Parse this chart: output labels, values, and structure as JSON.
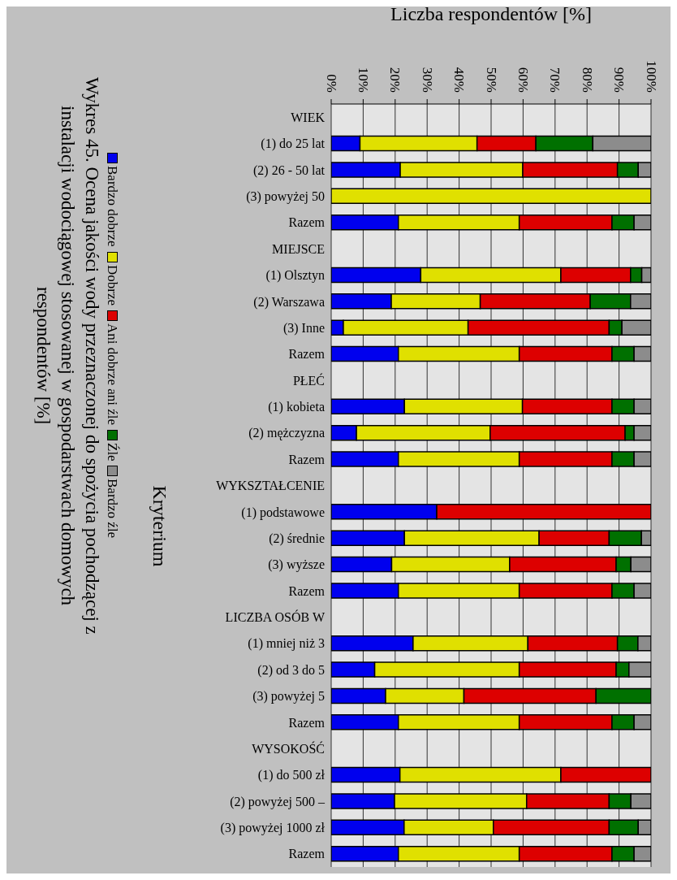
{
  "chart_data": {
    "type": "bar",
    "orientation": "horizontal",
    "stacked": true,
    "title": "Wykres 45. Ocena jakości wody przeznaczonej do spożycia pochodzącej z instalacji  wodociągowej stosowanej w gospodarstwach domowych respondentów [%]",
    "xlabel": "Liczba respondentów [%]",
    "ylabel": "Kryterium",
    "categories": [
      "WIEK",
      "(1) do 25 lat",
      "(2) 26 - 50 lat",
      "(3) powyżej 50",
      "Razem",
      "MIEJSCE",
      "(1) Olsztyn",
      "(2) Warszawa",
      "(3) Inne",
      "Razem",
      "PŁEĆ",
      "(1) kobieta",
      "(2) mężczyzna",
      "Razem",
      "WYKSZTAŁCENIE",
      "(1) podstawowe",
      "(2) średnie",
      "(3) wyższe",
      "Razem",
      "LICZBA OSÓB W",
      "(1) mniej niż 3",
      "(2) od 3 do 5",
      "(3) powyżej 5",
      "Razem",
      "WYSOKOŚĆ",
      "(1) do 500 zł",
      "(2) powyżej 500 –",
      "(3) powyżej 1000 zł",
      "Razem"
    ],
    "series": [
      {
        "name": "Bardzo dobrze",
        "color": "#0000ee",
        "values": [
          null,
          9,
          21.6,
          0,
          21,
          null,
          28,
          18.8,
          3.8,
          21,
          null,
          22.9,
          7.9,
          21,
          null,
          33,
          22.9,
          18.9,
          21,
          null,
          25.6,
          13.6,
          17,
          21,
          null,
          21.5,
          19.8,
          22.8,
          21
        ]
      },
      {
        "name": "Dobrze",
        "color": "#e0e000",
        "values": [
          null,
          36.6,
          38.3,
          100,
          37.8,
          null,
          43.8,
          27.8,
          39,
          37.8,
          null,
          36.9,
          41.8,
          37.8,
          null,
          0,
          42.1,
          36.9,
          37.8,
          null,
          35.9,
          45.2,
          24.5,
          37.8,
          null,
          50.3,
          41.3,
          27.9,
          37.8
        ]
      },
      {
        "name": "Ani dobrze ani źle",
        "color": "#dd0000",
        "values": [
          null,
          18.4,
          29.6,
          0,
          29,
          null,
          21.8,
          34.4,
          44.1,
          29,
          null,
          28,
          42.2,
          29,
          null,
          67,
          21.9,
          33.3,
          29,
          null,
          28,
          30.3,
          41.3,
          29,
          null,
          28.2,
          25.8,
          36.2,
          29
        ]
      },
      {
        "name": "Źle",
        "color": "#007000",
        "values": [
          null,
          17.8,
          6.5,
          0,
          6.9,
          null,
          3.5,
          12.6,
          4,
          6.9,
          null,
          6.9,
          2.8,
          6.9,
          null,
          0,
          10.1,
          4.6,
          6.9,
          null,
          6.4,
          4,
          17.2,
          6.9,
          null,
          0,
          6.8,
          9.1,
          6.9
        ]
      },
      {
        "name": "Bardzo źle",
        "color": "#8c8c8c",
        "values": [
          null,
          18.2,
          4,
          0,
          5.3,
          null,
          2.9,
          6.4,
          9.1,
          5.3,
          null,
          5.3,
          5.3,
          5.3,
          null,
          0,
          3,
          6.3,
          5.3,
          null,
          4.1,
          6.9,
          0,
          5.3,
          null,
          0,
          6.3,
          4,
          5.3
        ]
      }
    ],
    "xlim": [
      0,
      100
    ],
    "xticks": [
      {
        "value": 0,
        "label": "0%"
      },
      {
        "value": 10,
        "label": "10%"
      },
      {
        "value": 20,
        "label": "20%"
      },
      {
        "value": 30,
        "label": "30%"
      },
      {
        "value": 40,
        "label": "40%"
      },
      {
        "value": 50,
        "label": "50%"
      },
      {
        "value": 60,
        "label": "60%"
      },
      {
        "value": 70,
        "label": "70%"
      },
      {
        "value": 80,
        "label": "80%"
      },
      {
        "value": 90,
        "label": "90%"
      },
      {
        "value": 100,
        "label": "100%"
      }
    ],
    "grid": "x",
    "legend": "left"
  }
}
